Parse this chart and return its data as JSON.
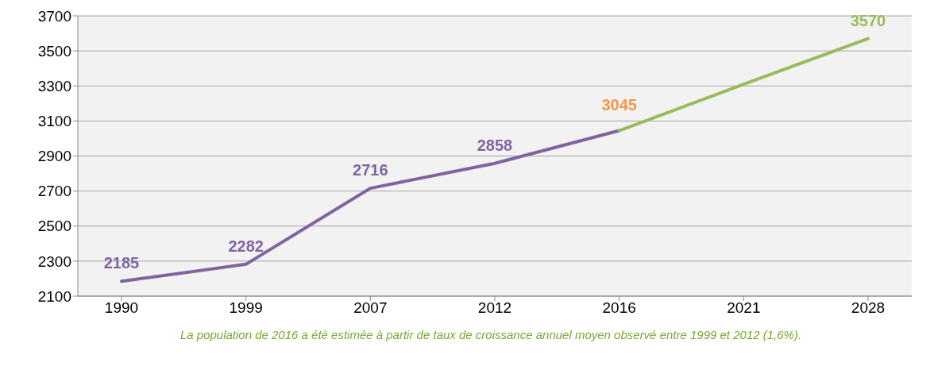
{
  "chart_data": {
    "type": "line",
    "categories": [
      "1990",
      "1999",
      "2007",
      "2012",
      "2016",
      "2021",
      "2028"
    ],
    "series": [
      {
        "color": "#8064a2",
        "values": [
          2185,
          2282,
          2716,
          2858,
          3045,
          null,
          null
        ],
        "value_labels": [
          "2185",
          "2282",
          "2716",
          "2858",
          null,
          null,
          null
        ]
      },
      {
        "color": "#9bbb59",
        "values": [
          null,
          null,
          null,
          null,
          3045,
          3310,
          3570
        ],
        "value_labels": [
          null,
          null,
          null,
          null,
          null,
          null,
          "3570"
        ]
      }
    ],
    "ylim": [
      2100,
      3700
    ],
    "yticks": [
      2100,
      2300,
      2500,
      2700,
      2900,
      3100,
      3300,
      3500,
      3700
    ],
    "grid": "y",
    "legend": false,
    "marker": "none",
    "line_style": "solid",
    "annotations": [
      {
        "text": "3045",
        "x": "2016",
        "y": 3045
      },
      "La population de 2016 a été estimée à partir de taux de croissance annuel moyen observé entre 1999 et 2012 (1,6%)."
    ]
  }
}
